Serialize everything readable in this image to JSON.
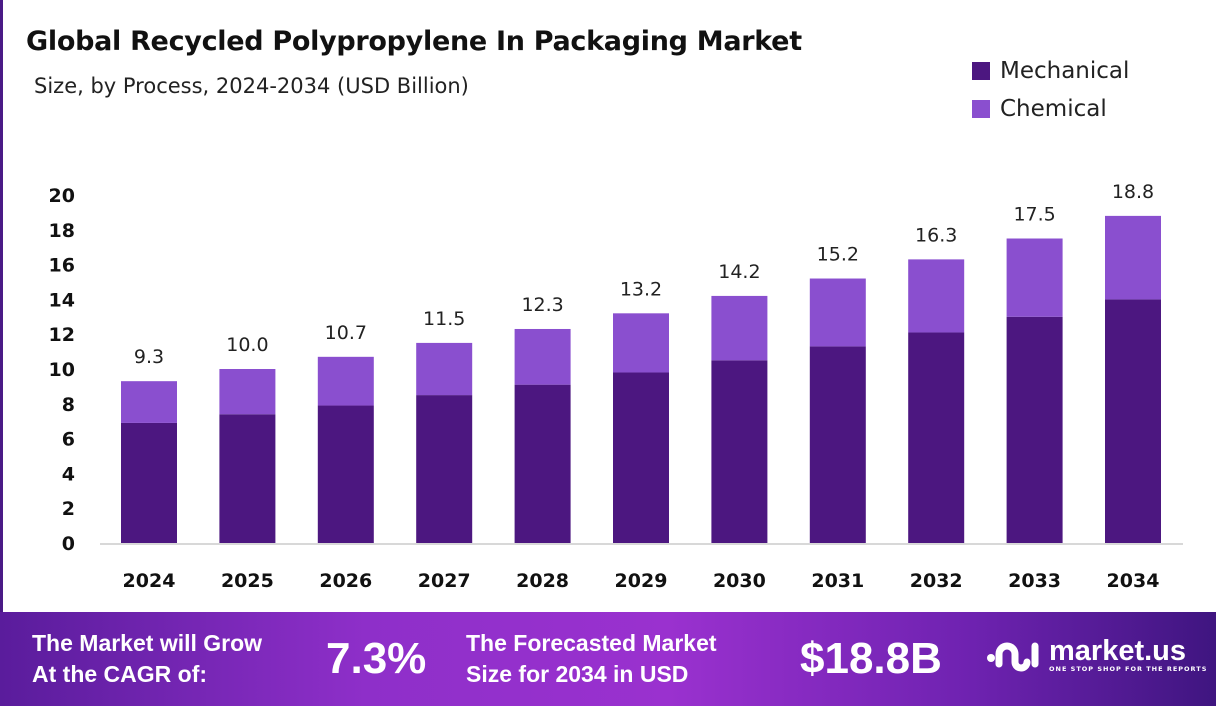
{
  "chart_data": {
    "type": "bar",
    "stacked": true,
    "title": "Global Recycled Polypropylene In Packaging Market",
    "subtitle": "Size, by Process, 2024-2034 (USD Billion)",
    "categories": [
      "2024",
      "2025",
      "2026",
      "2027",
      "2028",
      "2029",
      "2030",
      "2031",
      "2032",
      "2033",
      "2034"
    ],
    "series": [
      {
        "name": "Mechanical",
        "color": "#4c1780",
        "values": [
          6.9,
          7.4,
          7.9,
          8.5,
          9.1,
          9.8,
          10.5,
          11.3,
          12.1,
          13.0,
          14.0
        ]
      },
      {
        "name": "Chemical",
        "color": "#8a4fcf",
        "values": [
          2.4,
          2.6,
          2.8,
          3.0,
          3.2,
          3.4,
          3.7,
          3.9,
          4.2,
          4.5,
          4.8
        ]
      }
    ],
    "totals": [
      "9.3",
      "10.0",
      "10.7",
      "11.5",
      "12.3",
      "13.2",
      "14.2",
      "15.2",
      "16.3",
      "17.5",
      "18.8"
    ],
    "yticks": [
      0,
      2,
      4,
      6,
      8,
      10,
      12,
      14,
      16,
      18,
      20
    ],
    "ylim": [
      0,
      20
    ],
    "grid": false,
    "legend": "top-right"
  },
  "footer": {
    "cagr_label_1": "The Market will Grow",
    "cagr_label_2": "At the CAGR of:",
    "cagr_value": "7.3%",
    "forecast_label_1": "The Forecasted Market",
    "forecast_label_2": "Size for 2034 in USD",
    "forecast_value": "$18.8B",
    "logo_text": "market.us",
    "logo_tagline": "ONE STOP SHOP FOR THE REPORTS"
  }
}
